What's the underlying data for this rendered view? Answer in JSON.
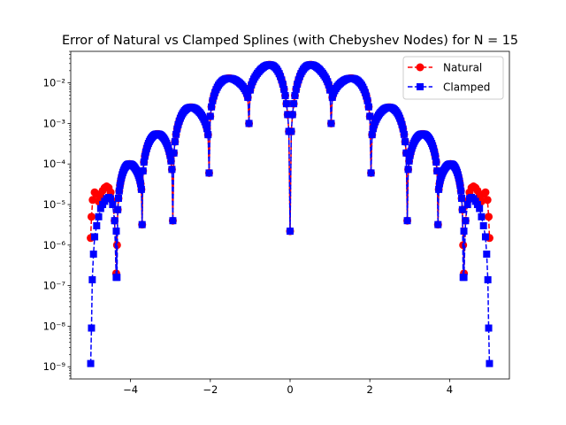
{
  "chart_data": {
    "type": "line",
    "title": "Error of Natural vs Clamped Splines (with Chebyshev Nodes) for N = 15",
    "xlabel": "",
    "ylabel": "",
    "yscale": "log",
    "xlim": [
      -5.5,
      5.5
    ],
    "ylim": [
      5e-10,
      0.06
    ],
    "xticks": [
      -4,
      -2,
      0,
      2,
      4
    ],
    "xtick_labels": [
      "−4",
      "−2",
      "0",
      "2",
      "4"
    ],
    "yticks": [
      1e-09,
      1e-08,
      1e-07,
      1e-06,
      1e-05,
      0.0001,
      0.001,
      0.01
    ],
    "ytick_labels": [
      "10⁻⁹",
      "10⁻⁸",
      "10⁻⁷",
      "10⁻⁶",
      "10⁻⁵",
      "10⁻⁴",
      "10⁻³",
      "10⁻²"
    ],
    "grid": false,
    "legend_position": "top-right",
    "colors": {
      "natural": "#ff0000",
      "clamped": "#0000ff"
    },
    "series": [
      {
        "name": "Natural",
        "marker": "circle",
        "linestyle": "dashed",
        "color": "#ff0000",
        "x": [
          -5.0,
          -4.98,
          -4.95,
          -4.9,
          -4.85,
          -4.8,
          -4.75,
          -4.7,
          -4.65,
          -4.6,
          -4.55,
          -4.5,
          -4.45,
          -4.4,
          -4.36,
          -4.34
        ],
        "y": [
          1.5e-06,
          5e-06,
          1.3e-05,
          2e-05,
          1.8e-05,
          1.2e-05,
          1.6e-05,
          2.2e-05,
          2.6e-05,
          2.8e-05,
          2.6e-05,
          2e-05,
          1.2e-05,
          4e-06,
          2e-07,
          1e-06
        ]
      },
      {
        "name": "Clamped",
        "marker": "square",
        "linestyle": "dashed",
        "color": "#0000ff",
        "x": [
          -5.0,
          -4.98,
          -4.96,
          -4.93,
          -4.9,
          -4.85,
          -4.8,
          -4.75,
          -4.7,
          -4.65,
          -4.6,
          -4.55,
          -4.5,
          -4.45,
          -4.4,
          -4.36
        ],
        "y": [
          1.2e-09,
          9e-09,
          1.4e-07,
          6e-07,
          1.6e-06,
          3e-06,
          5e-06,
          8e-06,
          1e-05,
          1.2e-05,
          1.4e-05,
          1.5e-05,
          1.4e-05,
          1e-05,
          4e-06,
          1.6e-07
        ]
      }
    ],
    "error_envelope": {
      "nodes": [
        -4.97,
        -4.34,
        -3.71,
        -2.94,
        -2.03,
        -1.03,
        0.0,
        1.03,
        2.03,
        2.94,
        3.71,
        4.34,
        4.97
      ],
      "node_minima": [
        1.2e-09,
        1.6e-07,
        3.2e-06,
        4e-06,
        6e-05,
        0.001,
        2.2e-06,
        0.001,
        6e-05,
        4e-06,
        3.2e-06,
        1.6e-07,
        1.2e-09
      ],
      "arch_peaks": [
        1.5e-05,
        0.0001,
        0.00055,
        0.0025,
        0.013,
        0.028,
        0.028,
        0.013,
        0.0025,
        0.00055,
        0.0001,
        1.5e-05
      ]
    }
  }
}
